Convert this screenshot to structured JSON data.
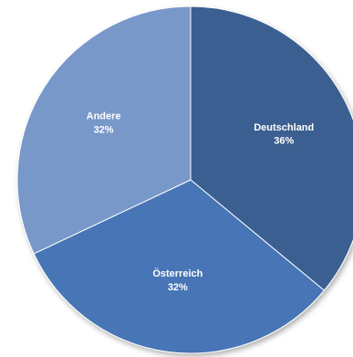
{
  "chart_data": {
    "type": "pie",
    "categories": [
      "Deutschland",
      "Österreich",
      "Andere"
    ],
    "values": [
      36,
      32,
      32
    ],
    "unit": "%",
    "data_labels": [
      "36%",
      "32%",
      "32%"
    ],
    "colors": [
      "#3b5f91",
      "#4675b5",
      "#7898c9"
    ],
    "start": "12 o'clock",
    "direction": "clockwise",
    "legend": "none",
    "title": ""
  }
}
